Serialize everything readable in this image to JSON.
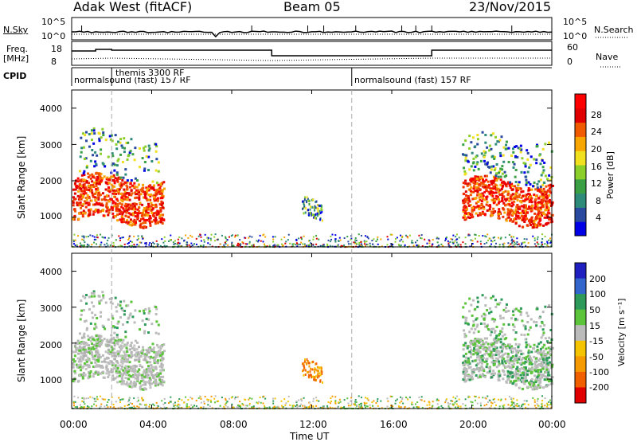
{
  "header": {
    "station": "Adak West (fitACF)",
    "beam": "Beam 05",
    "date": "23/Nov/2015"
  },
  "meta_panel": {
    "nsky_label": "N.Sky",
    "nsearch_label": "N.Search",
    "left_ticks": [
      "10^5",
      "10^0"
    ],
    "right_ticks": [
      "10^5",
      "10^0"
    ],
    "freq_label_line1": "Freq.",
    "freq_label_line2": "[MHz]",
    "freq_ticks": [
      "18",
      "8"
    ],
    "nave_label": "Nave",
    "nave_ticks": [
      "60",
      "0"
    ],
    "cpid_label": "CPID"
  },
  "cpid_segments": [
    {
      "name": "normalsound (fast) 157 RF",
      "start_hour": 0
    },
    {
      "name": "themis 3300 RF",
      "start_hour": 2
    },
    {
      "name": "normalsound (fast) 157 RF",
      "start_hour": 14
    }
  ],
  "x_axis": {
    "label": "Time UT",
    "ticks": [
      "00:00",
      "04:00",
      "08:00",
      "12:00",
      "16:00",
      "20:00",
      "00:00"
    ]
  },
  "y_axis": {
    "label": "Slant Range [km]",
    "ticks": [
      "4000",
      "3000",
      "2000",
      "1000"
    ]
  },
  "power_colorbar": {
    "label": "Power [dB]",
    "ticks": [
      "28",
      "24",
      "20",
      "16",
      "12",
      "8",
      "4"
    ],
    "colors": [
      "#0000e6",
      "#2a4aa0",
      "#2e8b7a",
      "#3aa043",
      "#8ccf2a",
      "#f0e020",
      "#f7a500",
      "#f05a00",
      "#e00000",
      "#ff0000"
    ]
  },
  "velocity_colorbar": {
    "label": "Velocity [m s⁻¹]",
    "ticks": [
      "200",
      "100",
      "50",
      "15",
      "-15",
      "-50",
      "-100",
      "-200"
    ],
    "colors": [
      "#2020c0",
      "#3366cc",
      "#2e9a5a",
      "#5cc43a",
      "#bbbbbb",
      "#f5c400",
      "#f59a00",
      "#f06000",
      "#e00000"
    ]
  },
  "chart_data": {
    "type": "heatmap",
    "x_range_hours": [
      0,
      24
    ],
    "y_range_km": [
      180,
      4500
    ],
    "cpid_change_hours": [
      2,
      14
    ],
    "power_regions": [
      {
        "t0": 0.0,
        "t1": 4.6,
        "r_low": 900,
        "r_high": 2100,
        "level": "high",
        "db_range": [
          20,
          30
        ]
      },
      {
        "t0": 0.3,
        "t1": 4.4,
        "r_low": 2100,
        "r_high": 3300,
        "level": "low",
        "db_range": [
          4,
          14
        ]
      },
      {
        "t0": 11.5,
        "t1": 12.5,
        "r_low": 1000,
        "r_high": 1500,
        "level": "low",
        "db_range": [
          4,
          10
        ]
      },
      {
        "t0": 19.5,
        "t1": 24.0,
        "r_low": 900,
        "r_high": 2000,
        "level": "high",
        "db_range": [
          16,
          30
        ]
      },
      {
        "t0": 19.5,
        "t1": 24.0,
        "r_low": 2000,
        "r_high": 3200,
        "level": "low",
        "db_range": [
          4,
          14
        ]
      }
    ],
    "velocity_regions": [
      {
        "t0": 0.0,
        "t1": 4.6,
        "r_low": 900,
        "r_high": 2100,
        "vel": "near-zero",
        "vel_range_ms": [
          -15,
          15
        ]
      },
      {
        "t0": 11.5,
        "t1": 12.5,
        "r_low": 1000,
        "r_high": 1500,
        "vel": "negative",
        "vel_range_ms": [
          -100,
          -50
        ]
      },
      {
        "t0": 19.5,
        "t1": 24.0,
        "r_low": 900,
        "r_high": 2000,
        "vel": "near-zero",
        "vel_range_ms": [
          -15,
          50
        ]
      }
    ]
  }
}
